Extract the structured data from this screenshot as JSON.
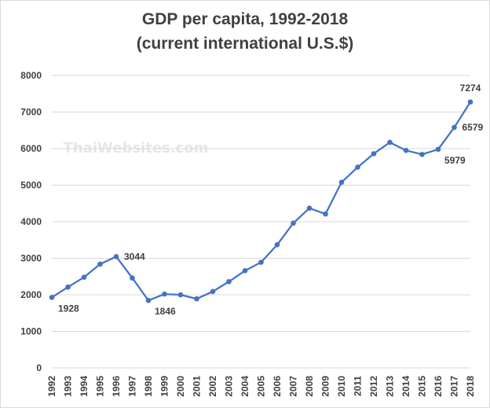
{
  "watermark": "ThaiWebsites.com",
  "colors": {
    "series": "#4472c4",
    "grid": "#d9d9d9",
    "text": "#404040",
    "watermark": "#e6e6e6"
  },
  "chart_data": {
    "type": "line",
    "title": "GDP per capita, 1992-2018",
    "subtitle": "(current international U.S.$)",
    "xlabel": "",
    "ylabel": "",
    "ylim": [
      0,
      8000
    ],
    "yticks": [
      0,
      1000,
      2000,
      3000,
      4000,
      5000,
      6000,
      7000,
      8000
    ],
    "grid": "horizontal",
    "legend": "none",
    "x": [
      "1992",
      "1993",
      "1994",
      "1995",
      "1996",
      "1997",
      "1998",
      "1999",
      "2000",
      "2001",
      "2002",
      "2003",
      "2004",
      "2005",
      "2006",
      "2007",
      "2008",
      "2009",
      "2010",
      "2011",
      "2012",
      "2013",
      "2014",
      "2015",
      "2016",
      "2017",
      "2018"
    ],
    "series": [
      {
        "values": [
          1928,
          2210,
          2480,
          2840,
          3044,
          2460,
          1846,
          2020,
          2000,
          1890,
          2090,
          2360,
          2660,
          2890,
          3370,
          3960,
          4370,
          4210,
          5080,
          5490,
          5860,
          6170,
          5950,
          5840,
          5979,
          6579,
          7274
        ]
      }
    ],
    "data_labels": [
      {
        "x": "1992",
        "value": 1928,
        "text": "1928",
        "pos": "below-right"
      },
      {
        "x": "1996",
        "value": 3044,
        "text": "3044",
        "pos": "right"
      },
      {
        "x": "1998",
        "value": 1846,
        "text": "1846",
        "pos": "below-right"
      },
      {
        "x": "2016",
        "value": 5979,
        "text": "5979",
        "pos": "below-right"
      },
      {
        "x": "2017",
        "value": 6579,
        "text": "6579",
        "pos": "right"
      },
      {
        "x": "2018",
        "value": 7274,
        "text": "7274",
        "pos": "above"
      }
    ]
  }
}
